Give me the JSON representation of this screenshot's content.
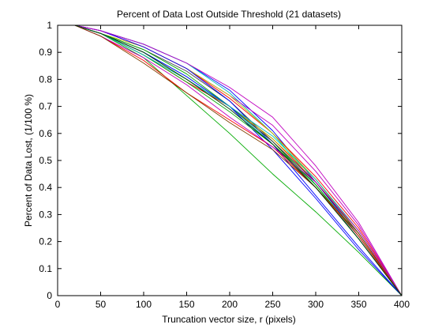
{
  "chart_data": {
    "type": "line",
    "title": "Percent of Data Lost Outside Threshold (21 datasets)",
    "xlabel": "Truncation vector size, r (pixels)",
    "ylabel": "Percent of Data Lost, (1/100 %)",
    "xlim": [
      0,
      400
    ],
    "ylim": [
      0,
      1
    ],
    "xticks": [
      0,
      50,
      100,
      150,
      200,
      250,
      300,
      350,
      400
    ],
    "yticks": [
      0,
      0.1,
      0.2,
      0.3,
      0.4,
      0.5,
      0.6,
      0.7,
      0.8,
      0.9,
      1
    ],
    "ytick_labels": [
      "0",
      "0.1",
      "0.2",
      "0.3",
      "0.4",
      "0.5",
      "0.6",
      "0.7",
      "0.8",
      "0.9",
      "1"
    ],
    "grid": false,
    "legend": "none",
    "x": [
      0,
      20,
      50,
      100,
      150,
      200,
      250,
      300,
      350,
      400
    ],
    "series": [
      {
        "color": "#0000ff",
        "values": [
          1.0,
          1.0,
          0.98,
          0.93,
          0.86,
          0.76,
          0.61,
          0.42,
          0.22,
          0.0
        ]
      },
      {
        "color": "#00aa00",
        "values": [
          1.0,
          1.0,
          0.97,
          0.88,
          0.74,
          0.6,
          0.45,
          0.31,
          0.16,
          0.0
        ]
      },
      {
        "color": "#ff0000",
        "values": [
          1.0,
          1.0,
          0.98,
          0.92,
          0.84,
          0.73,
          0.6,
          0.44,
          0.25,
          0.0
        ]
      },
      {
        "color": "#00bfbf",
        "values": [
          1.0,
          1.0,
          0.98,
          0.93,
          0.86,
          0.75,
          0.6,
          0.41,
          0.21,
          0.0
        ]
      },
      {
        "color": "#bf00bf",
        "values": [
          1.0,
          1.0,
          0.98,
          0.92,
          0.84,
          0.74,
          0.63,
          0.46,
          0.26,
          0.0
        ]
      },
      {
        "color": "#bfbf00",
        "values": [
          1.0,
          1.0,
          0.97,
          0.92,
          0.84,
          0.74,
          0.6,
          0.43,
          0.23,
          0.0
        ]
      },
      {
        "color": "#404040",
        "values": [
          1.0,
          1.0,
          0.97,
          0.91,
          0.83,
          0.72,
          0.57,
          0.4,
          0.21,
          0.0
        ]
      },
      {
        "color": "#0000ff",
        "values": [
          1.0,
          1.0,
          0.98,
          0.92,
          0.84,
          0.72,
          0.56,
          0.37,
          0.18,
          0.0
        ]
      },
      {
        "color": "#00aa00",
        "values": [
          1.0,
          1.0,
          0.97,
          0.91,
          0.82,
          0.7,
          0.57,
          0.41,
          0.22,
          0.0
        ]
      },
      {
        "color": "#ff0000",
        "values": [
          1.0,
          1.0,
          0.97,
          0.89,
          0.79,
          0.7,
          0.58,
          0.42,
          0.23,
          0.0
        ]
      },
      {
        "color": "#00bfbf",
        "values": [
          1.0,
          1.0,
          0.97,
          0.9,
          0.81,
          0.7,
          0.56,
          0.4,
          0.22,
          0.0
        ]
      },
      {
        "color": "#bf00bf",
        "values": [
          1.0,
          1.0,
          0.98,
          0.93,
          0.86,
          0.77,
          0.66,
          0.48,
          0.27,
          0.0
        ]
      },
      {
        "color": "#bfbf00",
        "values": [
          1.0,
          1.0,
          0.97,
          0.9,
          0.8,
          0.7,
          0.58,
          0.43,
          0.24,
          0.0
        ]
      },
      {
        "color": "#404040",
        "values": [
          1.0,
          1.0,
          0.97,
          0.89,
          0.8,
          0.7,
          0.57,
          0.42,
          0.23,
          0.0
        ]
      },
      {
        "color": "#0000ff",
        "values": [
          1.0,
          1.0,
          0.97,
          0.9,
          0.81,
          0.7,
          0.54,
          0.36,
          0.17,
          0.0
        ]
      },
      {
        "color": "#00aa00",
        "values": [
          1.0,
          1.0,
          0.97,
          0.89,
          0.79,
          0.68,
          0.56,
          0.41,
          0.22,
          0.0
        ]
      },
      {
        "color": "#ff0000",
        "values": [
          1.0,
          1.0,
          0.96,
          0.87,
          0.75,
          0.65,
          0.55,
          0.4,
          0.22,
          0.0
        ]
      },
      {
        "color": "#00bfbf",
        "values": [
          1.0,
          1.0,
          0.97,
          0.89,
          0.8,
          0.7,
          0.59,
          0.43,
          0.24,
          0.0
        ]
      },
      {
        "color": "#bf00bf",
        "values": [
          1.0,
          1.0,
          0.96,
          0.88,
          0.78,
          0.66,
          0.55,
          0.42,
          0.24,
          0.0
        ]
      },
      {
        "color": "#804000",
        "values": [
          1.0,
          1.0,
          0.96,
          0.86,
          0.75,
          0.64,
          0.54,
          0.4,
          0.23,
          0.0
        ]
      },
      {
        "color": "#004000",
        "values": [
          1.0,
          1.0,
          0.97,
          0.9,
          0.8,
          0.69,
          0.56,
          0.4,
          0.21,
          0.0
        ]
      }
    ]
  }
}
